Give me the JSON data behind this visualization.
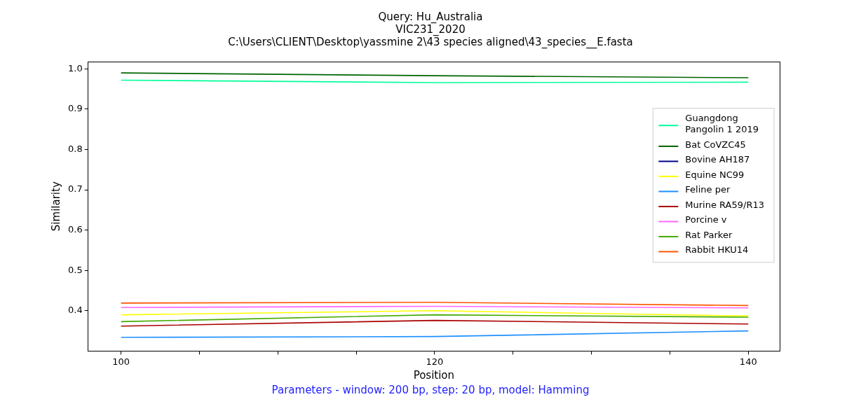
{
  "chart_data": {
    "type": "line",
    "title": "Query: Hu_Australia\nVIC231_2020\nC:\\Users\\CLIENT\\Desktop\\yassmine 2\\43 species aligned\\43_species__E.fasta",
    "xlabel": "Position",
    "ylabel": "Similarity",
    "x": [
      100,
      120,
      140
    ],
    "series": [
      {
        "name": "Guangdong\nPangolin 1 2019",
        "color": "#00ff99",
        "values": [
          0.972,
          0.966,
          0.967
        ]
      },
      {
        "name": "Bat CoVZC45",
        "color": "#006400",
        "values": [
          0.99,
          0.983,
          0.978
        ]
      },
      {
        "name": "Bovine AH187",
        "color": "#00008b",
        "values": [
          null,
          null,
          null
        ]
      },
      {
        "name": "Equine NC99",
        "color": "#ffff00",
        "values": [
          0.39,
          0.4,
          0.387
        ]
      },
      {
        "name": "Feline per",
        "color": "#1e90ff",
        "values": [
          0.334,
          0.336,
          0.35
        ]
      },
      {
        "name": "Murine RA59/R13",
        "color": "#aa0000",
        "values": [
          0.362,
          0.376,
          0.367
        ]
      },
      {
        "name": "Porcine v",
        "color": "#ff66ff",
        "values": [
          0.408,
          0.411,
          0.407
        ]
      },
      {
        "name": "Rat Parker",
        "color": "#44aa00",
        "values": [
          0.373,
          0.39,
          0.384
        ]
      },
      {
        "name": "Rabbit HKU14",
        "color": "#ff5500",
        "values": [
          0.419,
          0.421,
          0.413
        ]
      }
    ],
    "xlim": [
      97.9,
      142
    ],
    "xticks": [
      100,
      {
        "value": 105,
        "label": null
      },
      {
        "value": 110,
        "label": null
      },
      {
        "value": 115,
        "label": null
      },
      120,
      {
        "value": 125,
        "label": null
      },
      {
        "value": 130,
        "label": null
      },
      {
        "value": 135,
        "label": null
      },
      140
    ],
    "ylim": [
      0.3,
      1.018
    ],
    "yticks": [
      0.4,
      0.5,
      0.6,
      0.7,
      0.8,
      0.9,
      {
        "value": 1.0,
        "label": "1.0"
      }
    ],
    "grid": false,
    "legend": "right",
    "marker": "none",
    "line_style": "solid",
    "annotations": [
      "Parameters - window: 200 bp, step: 20 bp, model: Hamming"
    ]
  }
}
